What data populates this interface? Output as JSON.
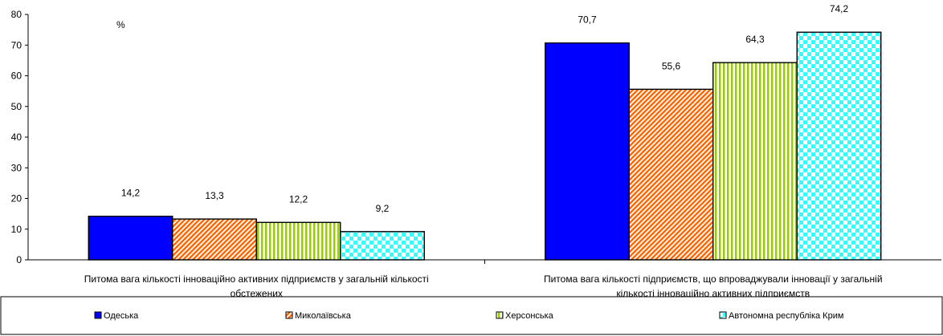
{
  "chart_data": {
    "type": "bar",
    "unit_label": "%",
    "categories": [
      "Питома вага кількості інноваційно активних підприємств у загальній кількості обстежених",
      "Питома вага кількості підприємств, що впроваджували інновації у загальній кількості інноваційно активних підприємств"
    ],
    "category_lines": [
      [
        "Питома вага кількості інноваційно активних підприємств у загальній кількості",
        "обстежених"
      ],
      [
        "Питома вага кількості підприємств, що впроваджували інновації у загальній",
        "кількості інноваційно активних підприємств"
      ]
    ],
    "series": [
      {
        "name": "Одеська",
        "values": [
          14.2,
          70.7
        ],
        "labels": [
          "14,2",
          "70,7"
        ],
        "color": "#0000ff",
        "pattern": "solid"
      },
      {
        "name": "Миколаївська",
        "values": [
          13.3,
          55.6
        ],
        "labels": [
          "13,3",
          "55,6"
        ],
        "color": "#ff6600",
        "pattern": "diagonal-stripes"
      },
      {
        "name": "Херсонська",
        "values": [
          12.2,
          64.3
        ],
        "labels": [
          "12,2",
          "64,3"
        ],
        "color": "#99cc00",
        "pattern": "vertical-stripes"
      },
      {
        "name": "Автономна республіка Крим",
        "values": [
          9.2,
          74.2
        ],
        "labels": [
          "9,2",
          "74,2"
        ],
        "color": "#33ffff",
        "pattern": "checkerboard"
      }
    ],
    "yticks": [
      0,
      10,
      20,
      30,
      40,
      50,
      60,
      70,
      80
    ],
    "ylim": [
      0,
      80
    ],
    "grid": false,
    "legend_position": "bottom"
  }
}
